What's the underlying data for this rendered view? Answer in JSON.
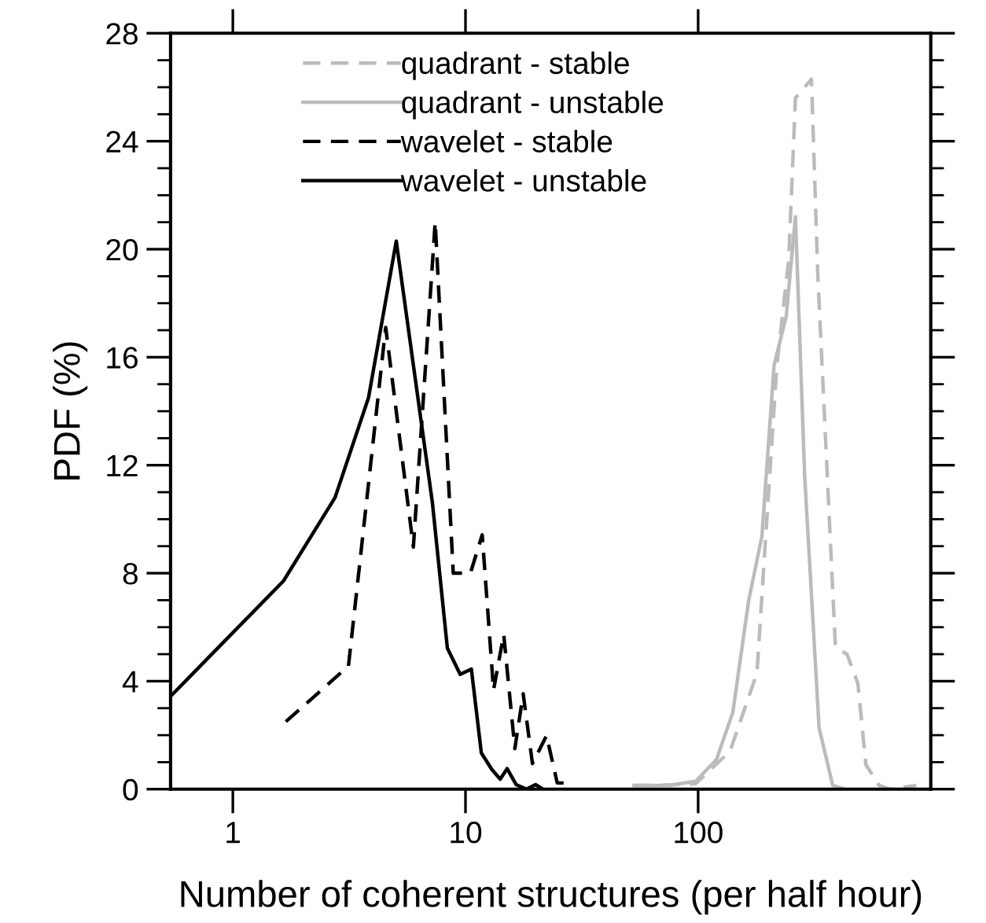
{
  "chart_data": {
    "type": "line",
    "xlabel": "Number of coherent structures (per half hour)",
    "ylabel": "PDF (%)",
    "log": "x",
    "xlim": [
      0.54,
      1000
    ],
    "xticks": [
      1,
      10,
      100
    ],
    "ylim": [
      0,
      28
    ],
    "yticks": [
      0,
      {
        "value": 1,
        "label": null
      },
      {
        "value": 2,
        "label": null
      },
      {
        "value": 3,
        "label": null
      },
      4,
      {
        "value": 5,
        "label": null
      },
      {
        "value": 6,
        "label": null
      },
      {
        "value": 7,
        "label": null
      },
      8,
      {
        "value": 9,
        "label": null
      },
      {
        "value": 10,
        "label": null
      },
      {
        "value": 11,
        "label": null
      },
      12,
      {
        "value": 13,
        "label": null
      },
      {
        "value": 14,
        "label": null
      },
      {
        "value": 15,
        "label": null
      },
      16,
      {
        "value": 17,
        "label": null
      },
      {
        "value": 18,
        "label": null
      },
      {
        "value": 19,
        "label": null
      },
      20,
      {
        "value": 21,
        "label": null
      },
      {
        "value": 22,
        "label": null
      },
      {
        "value": 23,
        "label": null
      },
      24,
      {
        "value": 25,
        "label": null
      },
      {
        "value": 26,
        "label": null
      },
      {
        "value": 27,
        "label": null
      },
      28
    ],
    "grid": false,
    "legend": "top left",
    "marker": "none",
    "series": [
      {
        "name": "quadrant - stable",
        "color": "#bbbbbb",
        "line_style": "dashed",
        "x": [
          53,
          67,
          97.5,
          137,
          179,
          193,
          218,
          245,
          262,
          307,
          327,
          389,
          437,
          486,
          526,
          600,
          667,
          867
        ],
        "values": [
          0.14,
          0.14,
          0.2,
          1.4,
          4.3,
          8.7,
          15.7,
          19.6,
          25.6,
          26.3,
          19.0,
          5.28,
          4.99,
          3.92,
          0.91,
          0.14,
          0,
          0.14
        ]
      },
      {
        "name": "quadrant - unstable",
        "color": "#bbbbbb",
        "line_style": "solid",
        "x": [
          53,
          74.8,
          97.5,
          120,
          141,
          165,
          188,
          212,
          239,
          262,
          287,
          331,
          379,
          426
        ],
        "values": [
          0.14,
          0.14,
          0.29,
          1.1,
          2.85,
          7.0,
          9.36,
          15.7,
          17.5,
          21.2,
          11.6,
          2.27,
          0.14,
          0
        ]
      },
      {
        "name": "wavelet - stable",
        "color": "#000000",
        "line_style": "dashed",
        "x": [
          1.69,
          3.14,
          4.54,
          5.97,
          7.41,
          8.86,
          10.5,
          11.8,
          13.2,
          14.6,
          16.3,
          17.7,
          19.4,
          22.3,
          24.8,
          27.9
        ],
        "values": [
          2.5,
          4.56,
          17.1,
          8.97,
          21.0,
          8.0,
          8.0,
          9.42,
          3.67,
          5.73,
          1.5,
          3.53,
          0.95,
          1.98,
          0.23,
          0.23
        ]
      },
      {
        "name": "wavelet - unstable",
        "color": "#000000",
        "line_style": "solid",
        "x": [
          0.54,
          1.65,
          2.75,
          3.83,
          5.04,
          7.21,
          8.36,
          9.49,
          10.6,
          11.7,
          13.0,
          14.1,
          15.1,
          16.5,
          18.3,
          20.0,
          21.5
        ],
        "values": [
          3.44,
          7.71,
          10.8,
          14.5,
          20.3,
          10.6,
          5.22,
          4.25,
          4.45,
          1.34,
          0.72,
          0.37,
          0.76,
          0.17,
          0,
          0.17,
          0
        ]
      }
    ]
  }
}
